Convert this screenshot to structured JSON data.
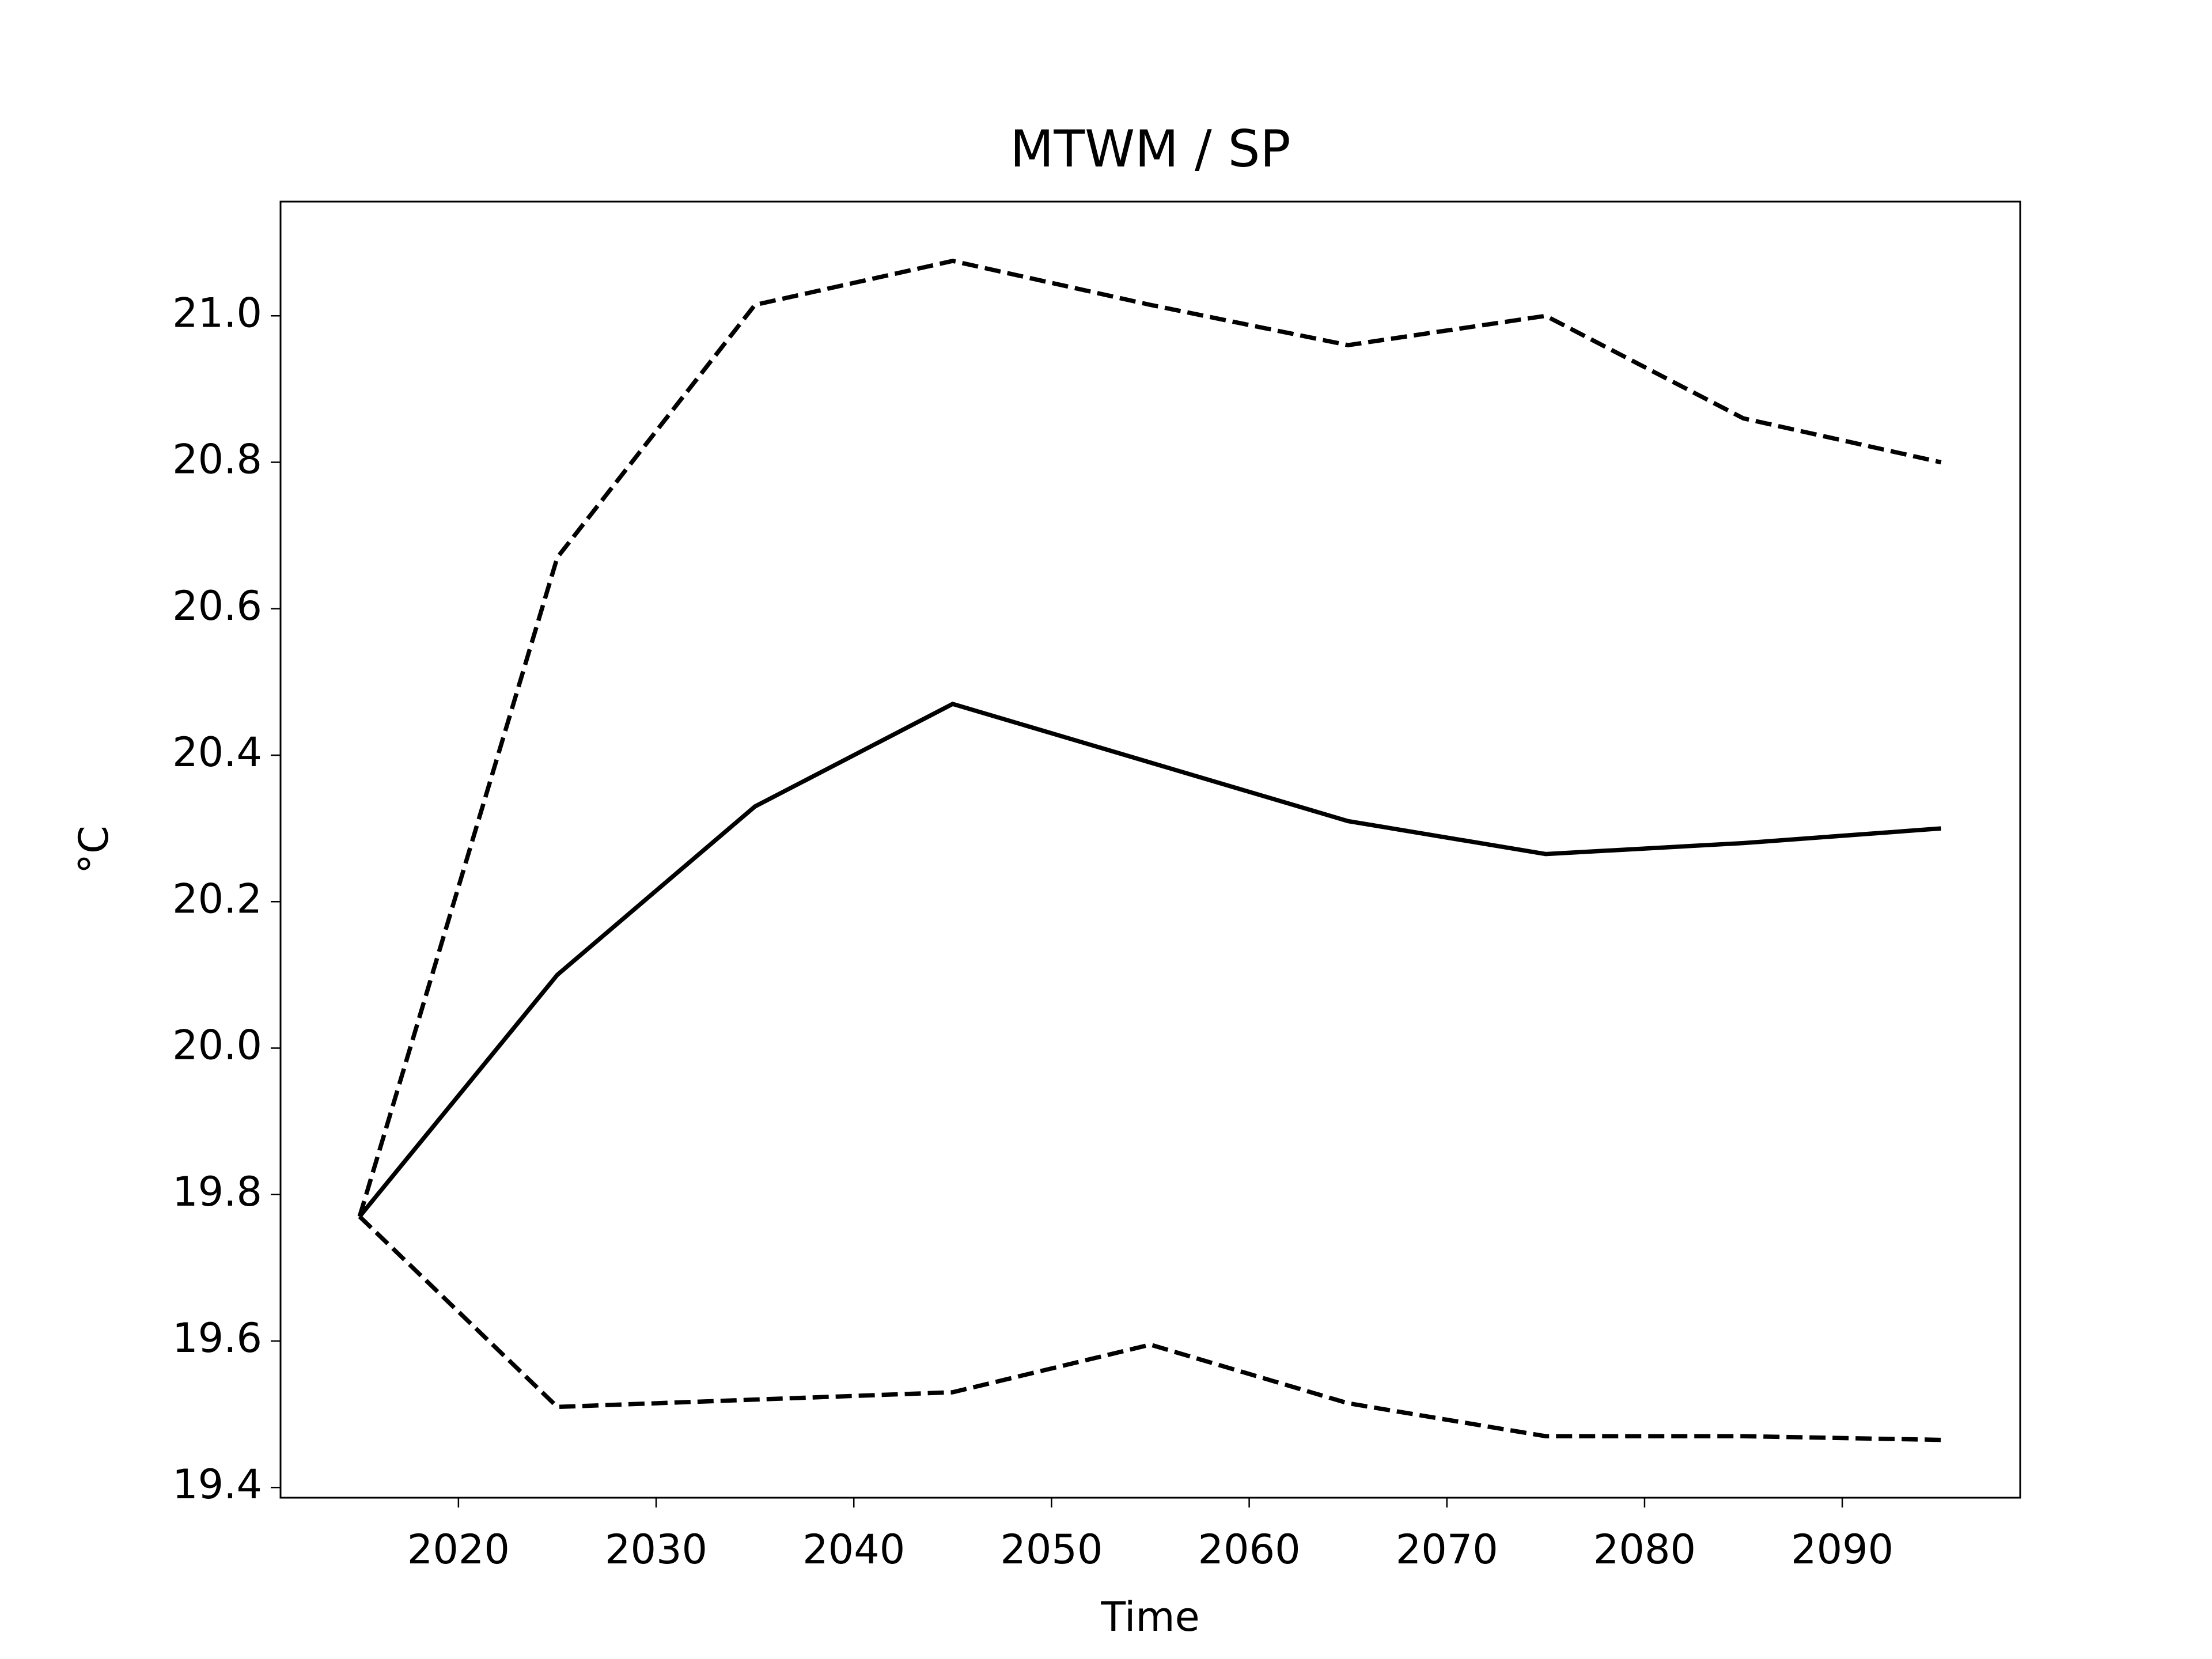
{
  "chart_data": {
    "type": "line",
    "title": "MTWM / SP",
    "xlabel": "Time",
    "ylabel": "°C",
    "x": [
      2015,
      2025,
      2035,
      2045,
      2055,
      2065,
      2075,
      2085,
      2095
    ],
    "series": [
      {
        "color": "#000000",
        "style": "solid",
        "values": [
          19.77,
          20.1,
          20.33,
          20.47,
          20.39,
          20.31,
          20.265,
          20.28,
          20.3
        ]
      },
      {
        "color": "#000000",
        "style": "dashed",
        "values": [
          19.77,
          20.67,
          21.015,
          21.075,
          21.015,
          20.96,
          21.0,
          20.86,
          20.8
        ]
      },
      {
        "color": "#000000",
        "style": "dashed",
        "values": [
          19.77,
          19.51,
          19.52,
          19.53,
          19.595,
          19.515,
          19.47,
          19.47,
          19.465
        ]
      }
    ],
    "xlim": [
      2011,
      2099
    ],
    "xticks": [
      2020,
      2030,
      2040,
      2050,
      2060,
      2070,
      2080,
      2090
    ],
    "ylim": [
      19.386,
      21.156
    ],
    "yticks": [
      19.4,
      19.6,
      19.8,
      {
        "value": 20.0,
        "label": "20.0"
      },
      20.2,
      20.4,
      20.6,
      20.8,
      {
        "value": 21.0,
        "label": "21.0"
      }
    ],
    "grid": false
  }
}
